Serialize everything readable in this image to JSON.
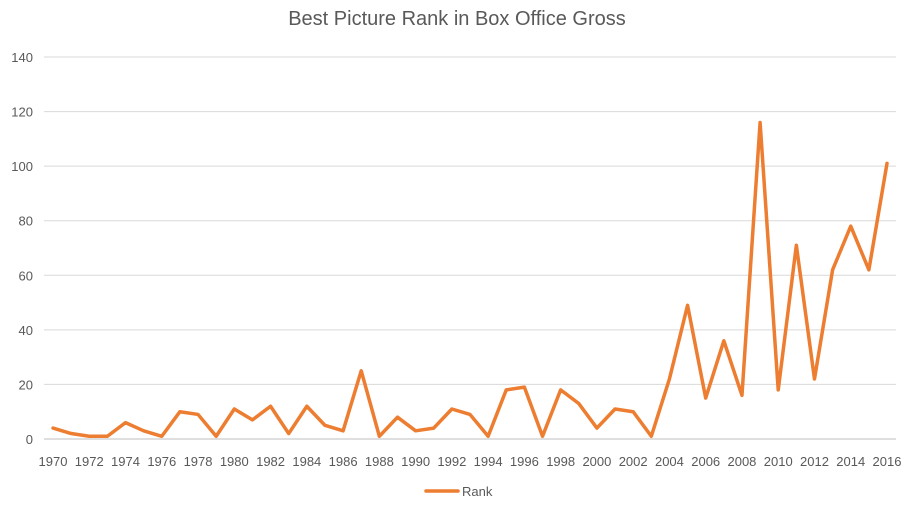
{
  "chart_data": {
    "type": "line",
    "title": "Best Picture Rank in Box Office Gross",
    "xlabel": "",
    "ylabel": "",
    "x": [
      1970,
      1971,
      1972,
      1973,
      1974,
      1975,
      1976,
      1977,
      1978,
      1979,
      1980,
      1981,
      1982,
      1983,
      1984,
      1985,
      1986,
      1987,
      1988,
      1989,
      1990,
      1991,
      1992,
      1993,
      1994,
      1995,
      1996,
      1997,
      1998,
      1999,
      2000,
      2001,
      2002,
      2003,
      2004,
      2005,
      2006,
      2007,
      2008,
      2009,
      2010,
      2011,
      2012,
      2013,
      2014,
      2015,
      2016
    ],
    "x_tick_labels": [
      "1970",
      "1972",
      "1974",
      "1976",
      "1978",
      "1980",
      "1982",
      "1984",
      "1986",
      "1988",
      "1990",
      "1992",
      "1994",
      "1996",
      "1998",
      "2000",
      "2002",
      "2004",
      "2006",
      "2008",
      "2010",
      "2012",
      "2014",
      "2016"
    ],
    "ylim": [
      0,
      140
    ],
    "y_tick_labels": [
      "0",
      "20",
      "40",
      "60",
      "80",
      "100",
      "120",
      "140"
    ],
    "grid": true,
    "legend_position": "bottom",
    "series": [
      {
        "name": "Rank",
        "color": "#ED7D31",
        "values": [
          4,
          2,
          1,
          1,
          6,
          3,
          1,
          10,
          9,
          1,
          11,
          7,
          12,
          2,
          12,
          5,
          3,
          25,
          1,
          8,
          3,
          4,
          11,
          9,
          1,
          18,
          19,
          1,
          18,
          13,
          4,
          11,
          10,
          1,
          22,
          49,
          15,
          36,
          16,
          116,
          18,
          71,
          22,
          62,
          78,
          62,
          101
        ]
      }
    ]
  }
}
